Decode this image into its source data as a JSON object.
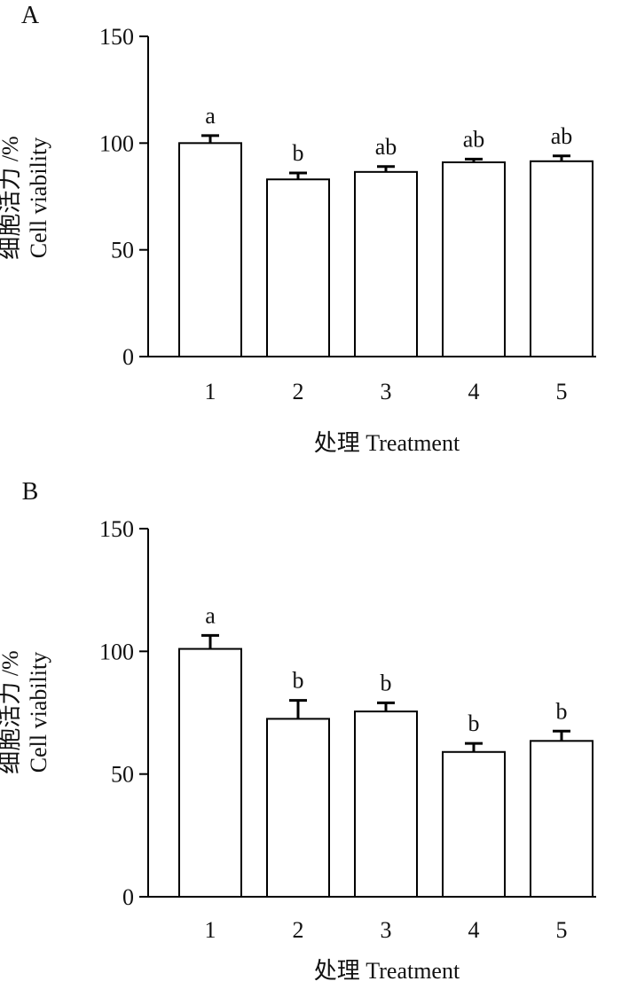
{
  "chart_data": [
    {
      "type": "bar",
      "panel_label": "A",
      "xlabel": "处理 Treatment",
      "ylabel_line1": "细胞活力 /%",
      "ylabel_line2": "Cell viability",
      "categories": [
        "1",
        "2",
        "3",
        "4",
        "5"
      ],
      "values": [
        100,
        83,
        86.5,
        91,
        91.5
      ],
      "errors": [
        3.5,
        3,
        2.5,
        1.5,
        2.5
      ],
      "significance": [
        "a",
        "b",
        "ab",
        "ab",
        "ab"
      ],
      "ylim": [
        0,
        150
      ],
      "yticks": [
        "0",
        "50",
        "100",
        "150"
      ],
      "grid": false
    },
    {
      "type": "bar",
      "panel_label": "B",
      "xlabel": "处理 Treatment",
      "ylabel_line1": "细胞活力 /%",
      "ylabel_line2": "Cell viability",
      "categories": [
        "1",
        "2",
        "3",
        "4",
        "5"
      ],
      "values": [
        101,
        72.5,
        75.5,
        59,
        63.5
      ],
      "errors": [
        5.5,
        7.5,
        3.5,
        3.5,
        4
      ],
      "significance": [
        "a",
        "b",
        "b",
        "b",
        "b"
      ],
      "ylim": [
        0,
        150
      ],
      "yticks": [
        "0",
        "50",
        "100",
        "150"
      ],
      "grid": false
    }
  ]
}
